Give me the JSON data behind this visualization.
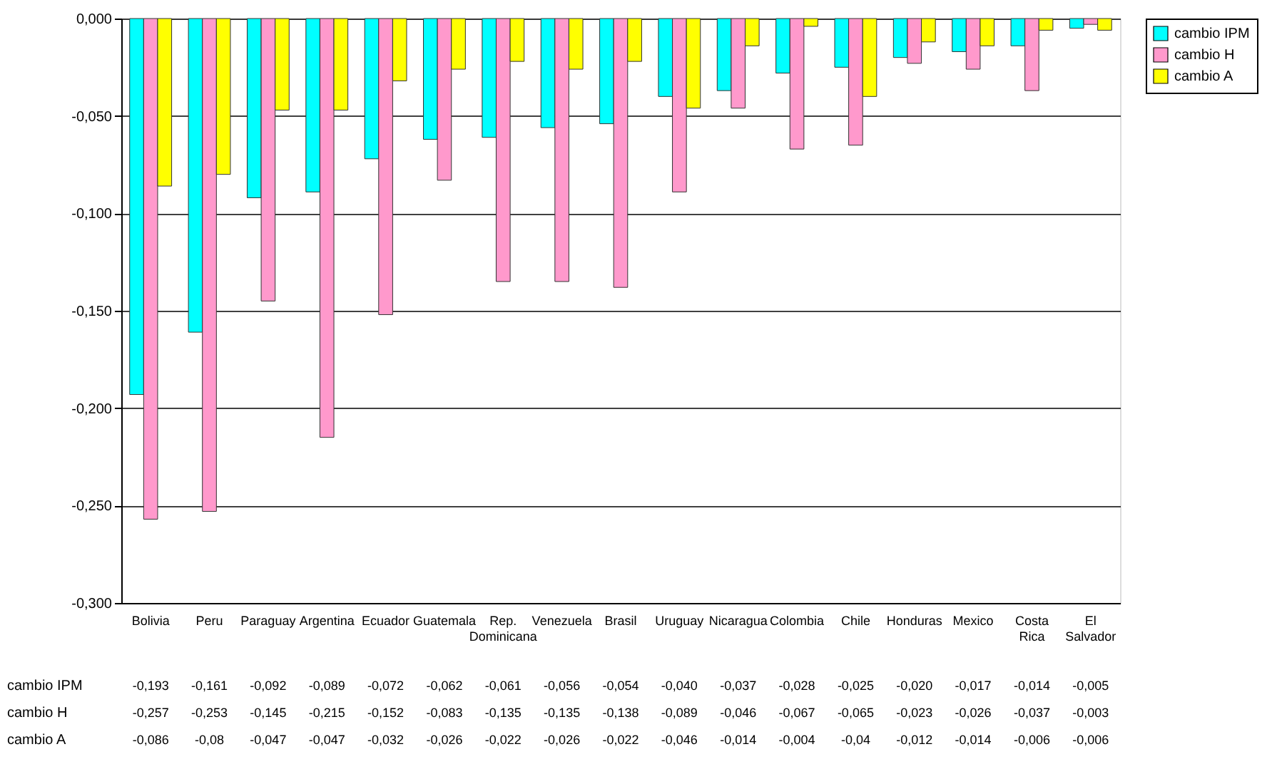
{
  "chart_data": {
    "type": "bar",
    "categories": [
      "Bolivia",
      "Peru",
      "Paraguay",
      "Argentina",
      "Ecuador",
      "Guatemala",
      "Rep. Dominicana",
      "Venezuela",
      "Brasil",
      "Uruguay",
      "Nicaragua",
      "Colombia",
      "Chile",
      "Honduras",
      "Mexico",
      "Costa Rica",
      "El Salvador"
    ],
    "series": [
      {
        "name": "cambio IPM",
        "color": "#00ffff",
        "values": [
          -0.193,
          -0.161,
          -0.092,
          -0.089,
          -0.072,
          -0.062,
          -0.061,
          -0.056,
          -0.054,
          -0.04,
          -0.037,
          -0.028,
          -0.025,
          -0.02,
          -0.017,
          -0.014,
          -0.005
        ],
        "value_labels": [
          "-0,193",
          "-0,161",
          "-0,092",
          "-0,089",
          "-0,072",
          "-0,062",
          "-0,061",
          "-0,056",
          "-0,054",
          "-0,040",
          "-0,037",
          "-0,028",
          "-0,025",
          "-0,020",
          "-0,017",
          "-0,014",
          "-0,005"
        ]
      },
      {
        "name": "cambio H",
        "color": "#ff99cc",
        "values": [
          -0.257,
          -0.253,
          -0.145,
          -0.215,
          -0.152,
          -0.083,
          -0.135,
          -0.135,
          -0.138,
          -0.089,
          -0.046,
          -0.067,
          -0.065,
          -0.023,
          -0.026,
          -0.037,
          -0.003
        ],
        "value_labels": [
          "-0,257",
          "-0,253",
          "-0,145",
          "-0,215",
          "-0,152",
          "-0,083",
          "-0,135",
          "-0,135",
          "-0,138",
          "-0,089",
          "-0,046",
          "-0,067",
          "-0,065",
          "-0,023",
          "-0,026",
          "-0,037",
          "-0,003"
        ]
      },
      {
        "name": "cambio A",
        "color": "#ffff00",
        "values": [
          -0.086,
          -0.08,
          -0.047,
          -0.047,
          -0.032,
          -0.026,
          -0.022,
          -0.026,
          -0.022,
          -0.046,
          -0.014,
          -0.004,
          -0.04,
          -0.012,
          -0.014,
          -0.006,
          -0.006
        ],
        "value_labels": [
          "-0,086",
          "-0,08",
          "-0,047",
          "-0,047",
          "-0,032",
          "-0,026",
          "-0,022",
          "-0,026",
          "-0,022",
          "-0,046",
          "-0,014",
          "-0,004",
          "-0,04",
          "-0,012",
          "-0,014",
          "-0,006",
          "-0,006"
        ]
      }
    ],
    "ylim": [
      -0.3,
      0
    ],
    "yticks": [
      {
        "value": -0.3,
        "label": "-0,300"
      },
      {
        "value": -0.25,
        "label": "-0,250"
      },
      {
        "value": -0.2,
        "label": "-0,200"
      },
      {
        "value": -0.15,
        "label": "-0,150"
      },
      {
        "value": -0.1,
        "label": "-0,100"
      },
      {
        "value": -0.05,
        "label": "-0,050"
      },
      {
        "value": 0,
        "label": "0,000"
      }
    ],
    "grid": "y",
    "legend": "right"
  }
}
